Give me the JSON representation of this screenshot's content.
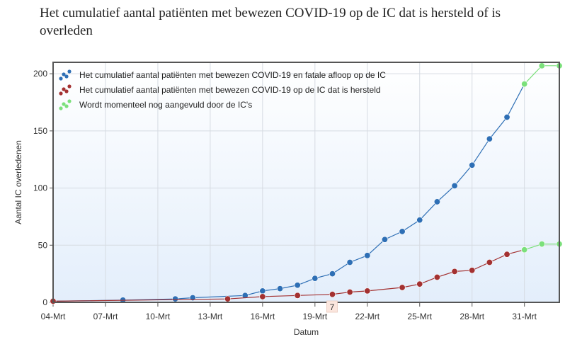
{
  "title": "Het cumulatief aantal patiënten met bewezen COVID-19 op de IC dat is hersteld of is overleden",
  "colors": {
    "fatal": "#2e6fb5",
    "recovered": "#a33131",
    "pending": "#7be07b",
    "plot_border": "#555555"
  },
  "chart_data": {
    "type": "line",
    "xlabel": "Datum",
    "ylabel": "Aantal IC overledenen",
    "ylim": [
      0,
      210
    ],
    "yticks": [
      0,
      50,
      100,
      150,
      200
    ],
    "x_start": "04-Mrt",
    "x_end": "02-Apr",
    "x_tick_labels": [
      "04-Mrt",
      "07-Mrt",
      "10-Mrt",
      "13-Mrt",
      "16-Mrt",
      "19-Mrt",
      "22-Mrt",
      "25-Mrt",
      "28-Mrt",
      "31-Mrt"
    ],
    "grid": true,
    "legend_position": "top-left",
    "series": [
      {
        "name": "Het cumulatief aantal patiënten met bewezen COVID-19 en fatale afloop op de IC",
        "color_key": "fatal",
        "points": [
          {
            "x": "04-Mrt",
            "y": 1
          },
          {
            "x": "08-Mrt",
            "y": 2
          },
          {
            "x": "11-Mrt",
            "y": 3
          },
          {
            "x": "12-Mrt",
            "y": 4
          },
          {
            "x": "15-Mrt",
            "y": 6
          },
          {
            "x": "16-Mrt",
            "y": 10
          },
          {
            "x": "17-Mrt",
            "y": 12
          },
          {
            "x": "18-Mrt",
            "y": 15
          },
          {
            "x": "19-Mrt",
            "y": 21
          },
          {
            "x": "20-Mrt",
            "y": 25
          },
          {
            "x": "21-Mrt",
            "y": 35
          },
          {
            "x": "22-Mrt",
            "y": 41
          },
          {
            "x": "23-Mrt",
            "y": 55
          },
          {
            "x": "24-Mrt",
            "y": 62
          },
          {
            "x": "25-Mrt",
            "y": 72
          },
          {
            "x": "26-Mrt",
            "y": 88
          },
          {
            "x": "27-Mrt",
            "y": 102
          },
          {
            "x": "28-Mrt",
            "y": 120
          },
          {
            "x": "29-Mrt",
            "y": 143
          },
          {
            "x": "30-Mrt",
            "y": 162
          },
          {
            "x": "31-Mrt",
            "y": 191
          }
        ]
      },
      {
        "name": "Het cumulatief aantal patiënten met bewezen COVID-19 op de IC dat is hersteld",
        "color_key": "recovered",
        "points": [
          {
            "x": "04-Mrt",
            "y": 1
          },
          {
            "x": "14-Mrt",
            "y": 3
          },
          {
            "x": "16-Mrt",
            "y": 5
          },
          {
            "x": "18-Mrt",
            "y": 6
          },
          {
            "x": "20-Mrt",
            "y": 7
          },
          {
            "x": "21-Mrt",
            "y": 9
          },
          {
            "x": "22-Mrt",
            "y": 10
          },
          {
            "x": "24-Mrt",
            "y": 13
          },
          {
            "x": "25-Mrt",
            "y": 16
          },
          {
            "x": "26-Mrt",
            "y": 22
          },
          {
            "x": "27-Mrt",
            "y": 27
          },
          {
            "x": "28-Mrt",
            "y": 28
          },
          {
            "x": "29-Mrt",
            "y": 35
          },
          {
            "x": "30-Mrt",
            "y": 42
          },
          {
            "x": "31-Mrt",
            "y": 46
          }
        ]
      },
      {
        "name": "Wordt momenteel nog aangevuld door de IC's",
        "color_key": "pending",
        "points": [
          {
            "x": "31-Mrt",
            "y": 191
          },
          {
            "x": "01-Apr",
            "y": 207
          },
          {
            "x": "02-Apr",
            "y": 207
          }
        ]
      },
      {
        "name": "Wordt momenteel nog aangevuld door de IC's",
        "legend": false,
        "color_key": "pending",
        "points": [
          {
            "x": "31-Mrt",
            "y": 46
          },
          {
            "x": "01-Apr",
            "y": 51
          },
          {
            "x": "02-Apr",
            "y": 51
          }
        ]
      }
    ],
    "tooltip": {
      "x": "20-Mrt",
      "text": "7"
    }
  }
}
